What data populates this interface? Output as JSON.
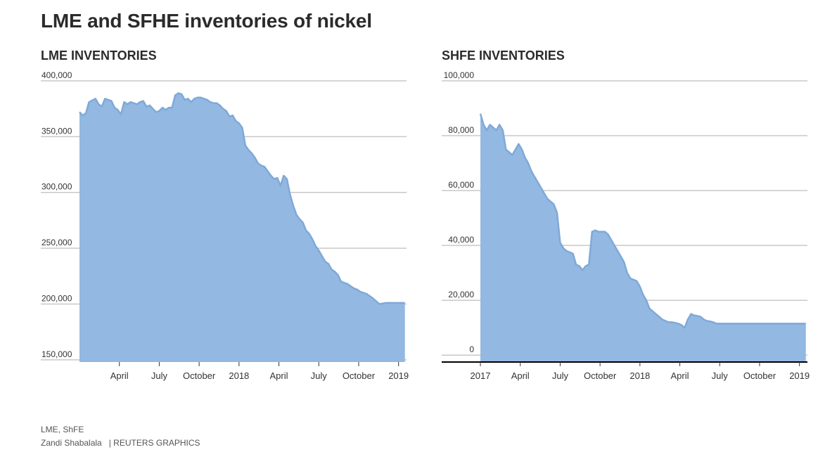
{
  "header": {
    "title": "LME and SFHE inventories of nickel"
  },
  "footer": {
    "source": "LME, ShFE",
    "author": "Zandi Shabalala",
    "credit": "| REUTERS GRAPHICS"
  },
  "colors": {
    "area_fill": "#93b8e1",
    "area_line": "#7fa9d8",
    "grid": "#c8c8c8",
    "axis": "#000000"
  },
  "chart_data": [
    {
      "type": "area",
      "title": "LME INVENTORIES",
      "yticks": [
        150000,
        200000,
        250000,
        300000,
        350000,
        400000
      ],
      "ytick_labels": [
        "150,000",
        "200,000",
        "250,000",
        "300,000",
        "350,000",
        "400,000"
      ],
      "ylim": [
        148000,
        400000
      ],
      "xlim": [
        2017.0,
        2019.05
      ],
      "xticks": [
        2017.25,
        2017.5,
        2017.75,
        2018.0,
        2018.25,
        2018.5,
        2018.75,
        2019.0
      ],
      "xtick_labels": [
        "April",
        "July",
        "October",
        "2018",
        "April",
        "July",
        "October",
        "2019"
      ],
      "x": [
        2017.0,
        2017.02,
        2017.04,
        2017.06,
        2017.1,
        2017.12,
        2017.14,
        2017.16,
        2017.2,
        2017.22,
        2017.24,
        2017.26,
        2017.28,
        2017.3,
        2017.32,
        2017.36,
        2017.38,
        2017.4,
        2017.42,
        2017.44,
        2017.46,
        2017.48,
        2017.5,
        2017.52,
        2017.54,
        2017.56,
        2017.58,
        2017.6,
        2017.62,
        2017.64,
        2017.66,
        2017.68,
        2017.7,
        2017.72,
        2017.74,
        2017.76,
        2017.8,
        2017.82,
        2017.84,
        2017.86,
        2017.88,
        2017.9,
        2017.92,
        2017.94,
        2017.96,
        2017.98,
        2018.0,
        2018.02,
        2018.04,
        2018.06,
        2018.08,
        2018.1,
        2018.12,
        2018.14,
        2018.16,
        2018.2,
        2018.22,
        2018.24,
        2018.26,
        2018.28,
        2018.3,
        2018.32,
        2018.34,
        2018.36,
        2018.38,
        2018.4,
        2018.42,
        2018.44,
        2018.46,
        2018.48,
        2018.5,
        2018.52,
        2018.54,
        2018.56,
        2018.58,
        2018.6,
        2018.62,
        2018.64,
        2018.66,
        2018.68,
        2018.7,
        2018.72,
        2018.74,
        2018.76,
        2018.78,
        2018.8,
        2018.84,
        2018.88,
        2018.92,
        2018.96,
        2018.98,
        2019.0,
        2019.02,
        2019.04
      ],
      "values": [
        372000,
        369000,
        371000,
        381000,
        384000,
        379000,
        377000,
        384000,
        382000,
        376000,
        374000,
        370000,
        381000,
        379000,
        381000,
        379000,
        381000,
        382000,
        377000,
        378000,
        375000,
        372000,
        373000,
        376000,
        374000,
        376000,
        376000,
        387000,
        389000,
        388000,
        383000,
        384000,
        381000,
        384000,
        385000,
        385000,
        383000,
        381000,
        380000,
        380000,
        378000,
        375000,
        373000,
        368000,
        369000,
        364000,
        362000,
        358000,
        342000,
        338000,
        335000,
        331000,
        326000,
        324000,
        323000,
        315000,
        312000,
        313000,
        306000,
        315000,
        312000,
        298000,
        288000,
        280000,
        276000,
        273000,
        266000,
        263000,
        258000,
        252000,
        248000,
        243000,
        238000,
        236000,
        231000,
        229000,
        226000,
        220000,
        219000,
        218000,
        216000,
        214000,
        213000,
        211000,
        210000,
        209000,
        205000,
        200000,
        201000,
        201000,
        201000,
        201000,
        201000,
        201000
      ]
    },
    {
      "type": "area",
      "title": "SHFE INVENTORIES",
      "yticks": [
        0,
        20000,
        40000,
        60000,
        80000,
        100000
      ],
      "ytick_labels": [
        "0",
        "20,000",
        "40,000",
        "60,000",
        "80,000",
        "100,000"
      ],
      "ylim": [
        -2500,
        100000
      ],
      "xlim": [
        2017.0,
        2019.05
      ],
      "xticks": [
        2017.0,
        2017.25,
        2017.5,
        2017.75,
        2018.0,
        2018.25,
        2018.5,
        2018.75,
        2019.0
      ],
      "xtick_labels": [
        "2017",
        "April",
        "July",
        "October",
        "2018",
        "April",
        "July",
        "October",
        "2019"
      ],
      "x": [
        2017.0,
        2017.02,
        2017.04,
        2017.06,
        2017.08,
        2017.1,
        2017.12,
        2017.14,
        2017.16,
        2017.18,
        2017.2,
        2017.22,
        2017.24,
        2017.26,
        2017.28,
        2017.3,
        2017.32,
        2017.34,
        2017.36,
        2017.38,
        2017.4,
        2017.42,
        2017.44,
        2017.46,
        2017.48,
        2017.5,
        2017.52,
        2017.54,
        2017.56,
        2017.58,
        2017.6,
        2017.62,
        2017.64,
        2017.66,
        2017.68,
        2017.7,
        2017.72,
        2017.74,
        2017.76,
        2017.78,
        2017.8,
        2017.82,
        2017.84,
        2017.86,
        2017.88,
        2017.9,
        2017.92,
        2017.94,
        2017.96,
        2017.98,
        2018.0,
        2018.02,
        2018.04,
        2018.06,
        2018.08,
        2018.1,
        2018.12,
        2018.14,
        2018.16,
        2018.18,
        2018.2,
        2018.22,
        2018.24,
        2018.26,
        2018.28,
        2018.3,
        2018.32,
        2018.34,
        2018.36,
        2018.38,
        2018.4,
        2018.42,
        2018.44,
        2018.46,
        2018.48,
        2018.5,
        2018.52,
        2018.54,
        2018.56,
        2018.58,
        2018.6,
        2018.62,
        2018.64,
        2018.66,
        2018.68,
        2018.7,
        2018.72,
        2018.74,
        2018.76,
        2018.78,
        2018.8,
        2018.82,
        2018.84,
        2018.86,
        2018.88,
        2018.9,
        2018.92,
        2018.94,
        2018.96,
        2018.98,
        2019.0,
        2019.02,
        2019.04
      ],
      "values": [
        88000,
        84000,
        82000,
        84000,
        83000,
        82000,
        84000,
        82000,
        75000,
        74000,
        73000,
        75000,
        77000,
        75000,
        72000,
        70000,
        67000,
        65000,
        63000,
        61000,
        59000,
        57000,
        56000,
        55000,
        52000,
        41000,
        39000,
        38000,
        37500,
        37000,
        33000,
        32500,
        31000,
        32500,
        33000,
        45000,
        45500,
        45000,
        45000,
        45000,
        44000,
        42000,
        40000,
        38000,
        36000,
        34000,
        30000,
        28000,
        27500,
        27000,
        25000,
        22000,
        20000,
        17000,
        16000,
        15000,
        14000,
        13000,
        12500,
        12000,
        12000,
        11800,
        11500,
        11000,
        10000,
        13000,
        15000,
        14500,
        14300,
        14000,
        13000,
        12500,
        12300,
        12000,
        11500,
        11500,
        11500,
        11500,
        11500,
        11500,
        11500,
        11500,
        11500,
        11500,
        11500,
        11500,
        11500,
        11500,
        11500,
        11500,
        11500,
        11500,
        11500,
        11500,
        11500,
        11500,
        11500,
        11500,
        11500,
        11500,
        11500,
        11500,
        11500
      ]
    }
  ]
}
